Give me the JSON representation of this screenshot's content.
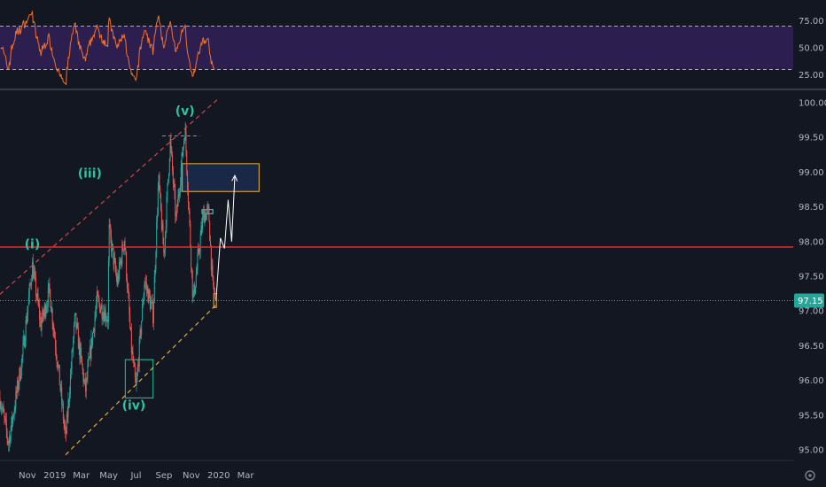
{
  "chart_data": [
    {
      "type": "line",
      "name": "rsi-panel",
      "ylim": [
        14,
        86
      ],
      "y_ticks": [
        "75.00",
        "50.00",
        "25.00"
      ],
      "bands": [
        30,
        70
      ],
      "colors": {
        "line": "#f2702a",
        "band_fill": "#2c1f4f",
        "band_lines": "#a9a9b9"
      }
    },
    {
      "type": "candlestick",
      "name": "price-panel",
      "ylim": [
        94.85,
        100.15
      ],
      "y_ticks": [
        "100.00",
        "99.50",
        "99.00",
        "98.50",
        "98.00",
        "97.50",
        "97.00",
        "96.50",
        "96.00",
        "95.50",
        "95.00"
      ],
      "x_ticks": [
        "Nov",
        "2019",
        "Mar",
        "May",
        "Jul",
        "Sep",
        "Nov",
        "2020",
        "Mar"
      ],
      "last_price": "97.15",
      "resistance_level": 97.92,
      "path_points": [
        {
          "date": "2018-09-01",
          "price": 95.75
        },
        {
          "date": "2018-09-20",
          "price": 95.1
        },
        {
          "date": "2018-10-20",
          "price": 96.3
        },
        {
          "date": "2018-11-12",
          "price": 97.65
        },
        {
          "date": "2018-12-01",
          "price": 96.8
        },
        {
          "date": "2018-12-20",
          "price": 97.3
        },
        {
          "date": "2019-01-10",
          "price": 96.1
        },
        {
          "date": "2019-01-25",
          "price": 95.15
        },
        {
          "date": "2019-02-15",
          "price": 96.9
        },
        {
          "date": "2019-03-10",
          "price": 95.85
        },
        {
          "date": "2019-04-05",
          "price": 97.15
        },
        {
          "date": "2019-04-30",
          "price": 96.9
        },
        {
          "date": "2019-05-01",
          "price": 98.2
        },
        {
          "date": "2019-05-20",
          "price": 97.4
        },
        {
          "date": "2019-06-05",
          "price": 98.05
        },
        {
          "date": "2019-06-20",
          "price": 96.5
        },
        {
          "date": "2019-07-01",
          "price": 95.85
        },
        {
          "date": "2019-07-20",
          "price": 97.45
        },
        {
          "date": "2019-08-08",
          "price": 96.95
        },
        {
          "date": "2019-08-20",
          "price": 98.9
        },
        {
          "date": "2019-09-01",
          "price": 97.8
        },
        {
          "date": "2019-09-15",
          "price": 99.45
        },
        {
          "date": "2019-09-28",
          "price": 98.3
        },
        {
          "date": "2019-10-18",
          "price": 99.65
        },
        {
          "date": "2019-11-05",
          "price": 97.15
        },
        {
          "date": "2019-11-28",
          "price": 98.4
        },
        {
          "date": "2019-12-10",
          "price": 98.4
        },
        {
          "date": "2019-12-18",
          "price": 97.4
        },
        {
          "date": "2019-12-25",
          "price": 97.15
        }
      ],
      "projection": [
        {
          "date": "2019-12-26",
          "price": 97.15
        },
        {
          "date": "2020-01-05",
          "price": 98.05
        },
        {
          "date": "2020-01-14",
          "price": 97.9
        },
        {
          "date": "2020-01-22",
          "price": 98.6
        },
        {
          "date": "2020-01-30",
          "price": 98.0
        },
        {
          "date": "2020-02-06",
          "price": 98.95
        }
      ],
      "trend_lines": [
        {
          "name": "upper-channel",
          "style": "dashed",
          "color": "#e0403c",
          "from": {
            "date": "2018-09-01",
            "price": 97.24
          },
          "to": {
            "date": "2020-01-01",
            "price": 100.06
          }
        },
        {
          "name": "lower-channel",
          "style": "dashed",
          "color": "#f0a82a",
          "from": {
            "date": "2019-01-25",
            "price": 94.93
          },
          "to": {
            "date": "2019-12-28",
            "price": 97.1
          }
        }
      ],
      "zones": [
        {
          "name": "target-zone",
          "from": "2019-10-12",
          "to": "2020-03-31",
          "top": 99.12,
          "bottom": 98.72,
          "color": "#f0b429",
          "fill": "#1c2b4e"
        },
        {
          "name": "wave-iv-box",
          "from": "2019-06-07",
          "to": "2019-08-08",
          "top": 96.3,
          "bottom": 95.75,
          "color": "#26c6a0"
        },
        {
          "name": "small-top-box",
          "from": "2019-11-25",
          "to": "2019-12-19",
          "top": 98.46,
          "bottom": 98.4,
          "color": "#6ac8e0"
        },
        {
          "name": "current-box",
          "from": "2019-12-21",
          "to": "2019-12-27",
          "top": 97.25,
          "bottom": 97.05,
          "color": "#f0b429"
        }
      ],
      "wave_labels": [
        {
          "text": "(i)",
          "date": "2018-11-12",
          "price": 97.9
        },
        {
          "text": "(iii)",
          "date": "2019-03-20",
          "price": 98.92
        },
        {
          "text": "(iv)",
          "date": "2019-06-26",
          "price": 95.58
        },
        {
          "text": "(v)",
          "date": "2019-10-18",
          "price": 99.82
        }
      ]
    }
  ]
}
